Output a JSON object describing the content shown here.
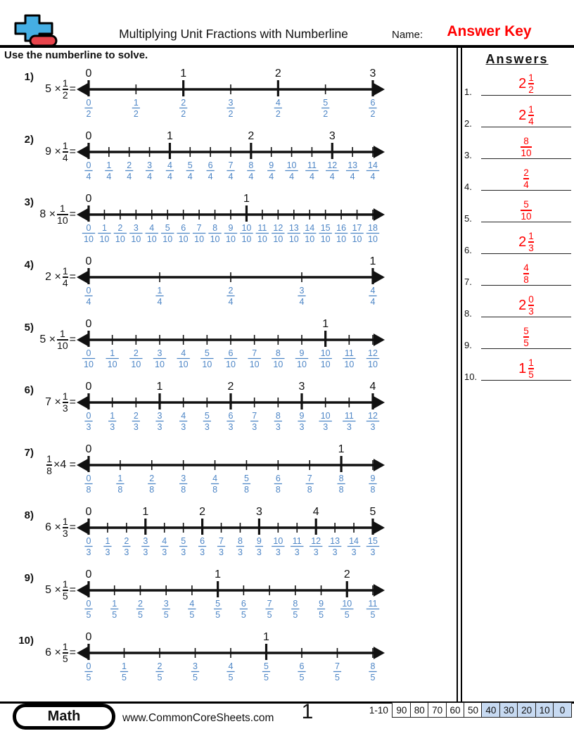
{
  "header": {
    "title": "Multiplying Unit Fractions with Numberline",
    "name_label": "Name:",
    "name_value": "Answer Key",
    "instructions": "Use the numberline to solve."
  },
  "answers_panel": {
    "title": "Answers",
    "items": [
      {
        "label": "1.",
        "whole": "2",
        "n": "1",
        "d": "2"
      },
      {
        "label": "2.",
        "whole": "2",
        "n": "1",
        "d": "4"
      },
      {
        "label": "3.",
        "whole": "",
        "n": "8",
        "d": "10"
      },
      {
        "label": "4.",
        "whole": "",
        "n": "2",
        "d": "4"
      },
      {
        "label": "5.",
        "whole": "",
        "n": "5",
        "d": "10"
      },
      {
        "label": "6.",
        "whole": "2",
        "n": "1",
        "d": "3"
      },
      {
        "label": "7.",
        "whole": "",
        "n": "4",
        "d": "8"
      },
      {
        "label": "8.",
        "whole": "2",
        "n": "0",
        "d": "3"
      },
      {
        "label": "9.",
        "whole": "",
        "n": "5",
        "d": "5"
      },
      {
        "label": "10.",
        "whole": "1",
        "n": "1",
        "d": "5"
      }
    ]
  },
  "problems": [
    {
      "label": "1)",
      "expr": [
        {
          "t": "5 ×"
        },
        {
          "f": [
            "1",
            "2"
          ]
        },
        {
          "t": "="
        }
      ],
      "den": 2,
      "max": 6,
      "int_labels": [
        [
          "0",
          0
        ],
        [
          "1",
          2
        ],
        [
          "2",
          4
        ],
        [
          "3",
          6
        ]
      ]
    },
    {
      "label": "2)",
      "expr": [
        {
          "t": "9 ×"
        },
        {
          "f": [
            "1",
            "4"
          ]
        },
        {
          "t": "="
        }
      ],
      "den": 4,
      "max": 14,
      "int_labels": [
        [
          "0",
          0
        ],
        [
          "1",
          4
        ],
        [
          "2",
          8
        ],
        [
          "3",
          12
        ]
      ]
    },
    {
      "label": "3)",
      "expr": [
        {
          "t": "8 ×"
        },
        {
          "f": [
            "1",
            "10"
          ]
        },
        {
          "t": "="
        }
      ],
      "den": 10,
      "max": 18,
      "int_labels": [
        [
          "0",
          0
        ],
        [
          "1",
          10
        ]
      ]
    },
    {
      "label": "4)",
      "expr": [
        {
          "t": "2 ×"
        },
        {
          "f": [
            "1",
            "4"
          ]
        },
        {
          "t": "="
        }
      ],
      "den": 4,
      "max": 4,
      "int_labels": [
        [
          "0",
          0
        ],
        [
          "1",
          4
        ]
      ]
    },
    {
      "label": "5)",
      "expr": [
        {
          "t": "5 ×"
        },
        {
          "f": [
            "1",
            "10"
          ]
        },
        {
          "t": "="
        }
      ],
      "den": 10,
      "max": 12,
      "int_labels": [
        [
          "0",
          0
        ],
        [
          "1",
          10
        ]
      ]
    },
    {
      "label": "6)",
      "expr": [
        {
          "t": "7 ×"
        },
        {
          "f": [
            "1",
            "3"
          ]
        },
        {
          "t": "="
        }
      ],
      "den": 3,
      "max": 12,
      "int_labels": [
        [
          "0",
          0
        ],
        [
          "1",
          3
        ],
        [
          "2",
          6
        ],
        [
          "3",
          9
        ],
        [
          "4",
          12
        ]
      ]
    },
    {
      "label": "7)",
      "expr": [
        {
          "f": [
            "1",
            "8"
          ]
        },
        {
          "t": "×4 ="
        }
      ],
      "den": 8,
      "max": 9,
      "int_labels": [
        [
          "0",
          0
        ],
        [
          "1",
          8
        ]
      ]
    },
    {
      "label": "8)",
      "expr": [
        {
          "t": "6 ×"
        },
        {
          "f": [
            "1",
            "3"
          ]
        },
        {
          "t": "="
        }
      ],
      "den": 3,
      "max": 15,
      "int_labels": [
        [
          "0",
          0
        ],
        [
          "1",
          3
        ],
        [
          "2",
          6
        ],
        [
          "3",
          9
        ],
        [
          "4",
          12
        ],
        [
          "5",
          15
        ]
      ]
    },
    {
      "label": "9)",
      "expr": [
        {
          "t": "5 ×"
        },
        {
          "f": [
            "1",
            "5"
          ]
        },
        {
          "t": "="
        }
      ],
      "den": 5,
      "max": 11,
      "int_labels": [
        [
          "0",
          0
        ],
        [
          "1",
          5
        ],
        [
          "2",
          10
        ]
      ]
    },
    {
      "label": "10)",
      "expr": [
        {
          "t": "6 ×"
        },
        {
          "f": [
            "1",
            "5"
          ]
        },
        {
          "t": "="
        }
      ],
      "den": 5,
      "max": 8,
      "int_labels": [
        [
          "0",
          0
        ],
        [
          "1",
          5
        ]
      ]
    }
  ],
  "footer": {
    "badge": "Math",
    "website": "www.CommonCoreSheets.com",
    "page_number": "1",
    "range_label": "1-10",
    "scores": [
      "90",
      "80",
      "70",
      "60",
      "50",
      "40",
      "30",
      "20",
      "10",
      "0"
    ],
    "highlighted_scores": [
      "40",
      "30",
      "20",
      "10",
      "0"
    ]
  },
  "colors": {
    "answer_red": "#ff0000",
    "fraction_blue": "#4e86c6",
    "line_black": "#111111",
    "score_highlight": "#c7daf2",
    "icon_blue": "#45aee3",
    "icon_red": "#e8444c"
  }
}
